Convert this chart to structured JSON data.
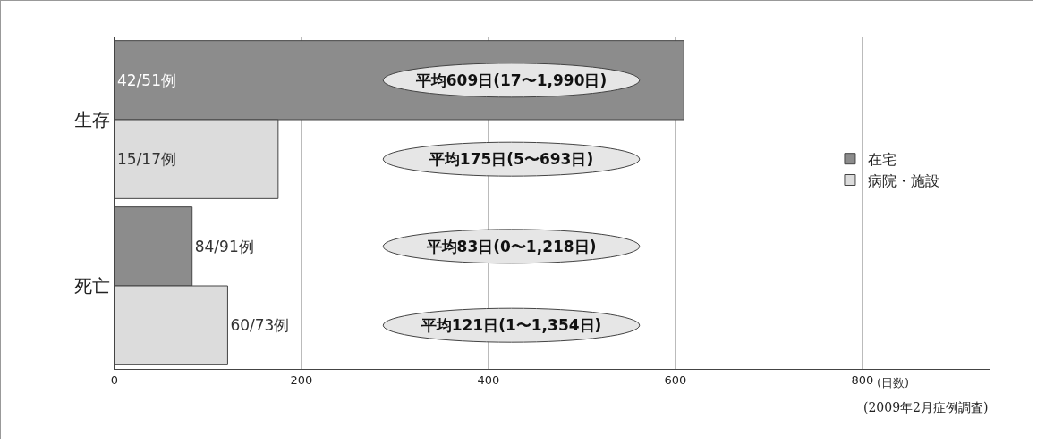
{
  "chart_data": {
    "type": "bar",
    "orientation": "horizontal",
    "categories": [
      "生存",
      "死亡"
    ],
    "series": [
      {
        "name": "在宅",
        "color": "#8c8c8c",
        "values": [
          609,
          83
        ],
        "value_labels": [
          "42/51例",
          "84/91例"
        ]
      },
      {
        "name": "病院・施設",
        "color": "#dcdcdc",
        "values": [
          175,
          121
        ],
        "value_labels": [
          "15/17例",
          "60/73例"
        ]
      }
    ],
    "xlim": [
      0,
      936
    ],
    "xticks": [
      0,
      200,
      400,
      600,
      800
    ],
    "xlabel": "(日数)",
    "grid": "x",
    "legend": "right",
    "annotations": [
      "平均609日(17〜1,990日)",
      "平均83日(0〜1,218日)",
      "平均175日(5〜693日)",
      "平均121日(1〜1,354日)",
      "(2009年2月症例調査)"
    ]
  }
}
